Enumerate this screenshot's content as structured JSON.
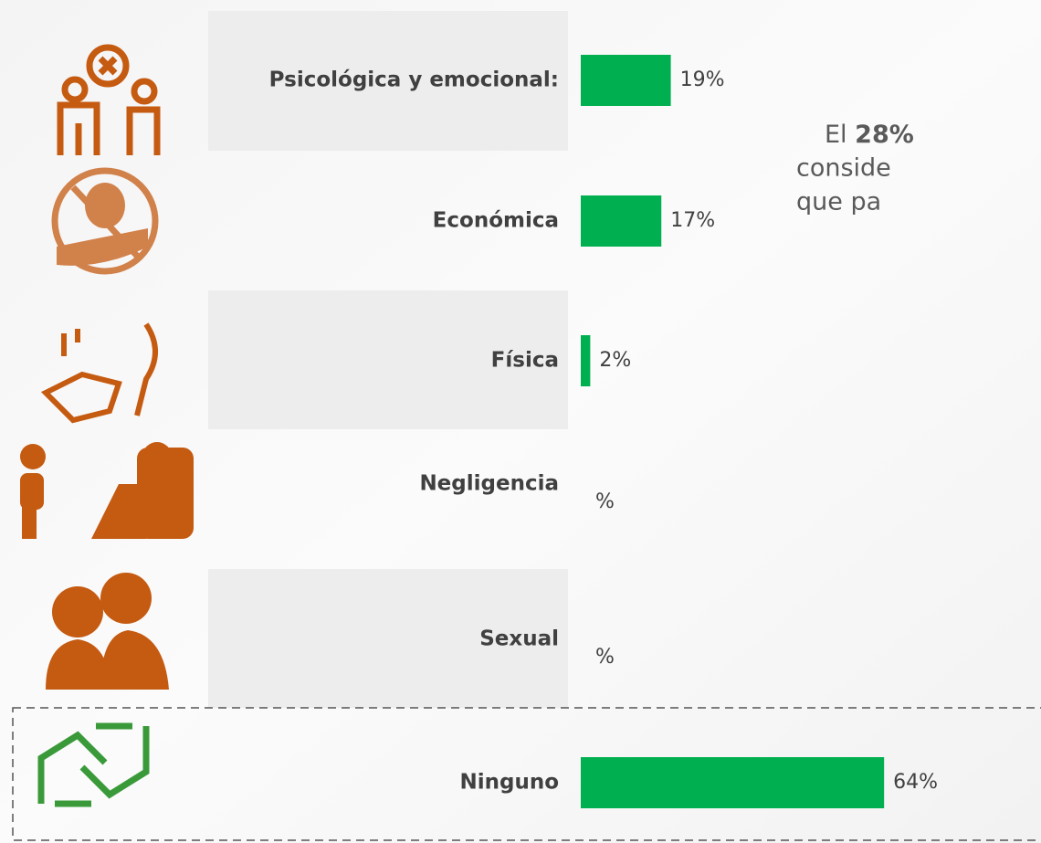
{
  "chart_data": {
    "type": "bar",
    "categories": [
      "Psicológica y emocional:",
      "Económica",
      "Física",
      "Negligencia",
      "Sexual",
      "Ninguno"
    ],
    "values": [
      19,
      17,
      2,
      null,
      null,
      64
    ],
    "value_labels": [
      "19%",
      "17%",
      "2%",
      "%",
      "%",
      "64%"
    ],
    "color": "#00b050",
    "note_lines": [
      "El ",
      "28%",
      "conside",
      "que pa"
    ]
  }
}
